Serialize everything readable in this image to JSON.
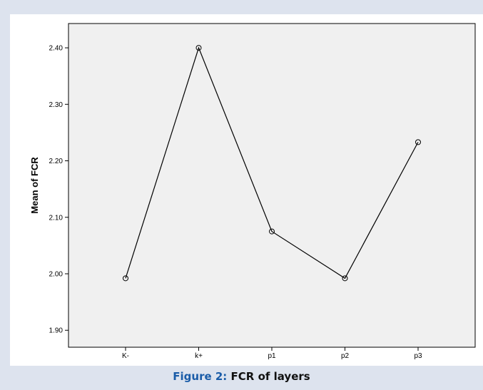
{
  "caption": {
    "figure_label": "Figure 2:",
    "figure_title": "FCR of layers"
  },
  "colors": {
    "frame_background": "#dde3ee",
    "plot_background": "#f0f0f0",
    "line": "#000000",
    "caption_label": "#1a5ca8"
  },
  "chart_data": {
    "type": "line",
    "categories": [
      "K-",
      "k+",
      "p1",
      "p2",
      "p3"
    ],
    "values": [
      1.992,
      2.4,
      2.075,
      1.992,
      2.233
    ],
    "markers": "open-circle",
    "xlabel": "",
    "ylabel": "Mean of FCR",
    "yticks": [
      "1.90",
      "2.00",
      "2.10",
      "2.20",
      "2.30",
      "2.40"
    ],
    "ylim": [
      1.87,
      2.443
    ],
    "grid": false
  }
}
